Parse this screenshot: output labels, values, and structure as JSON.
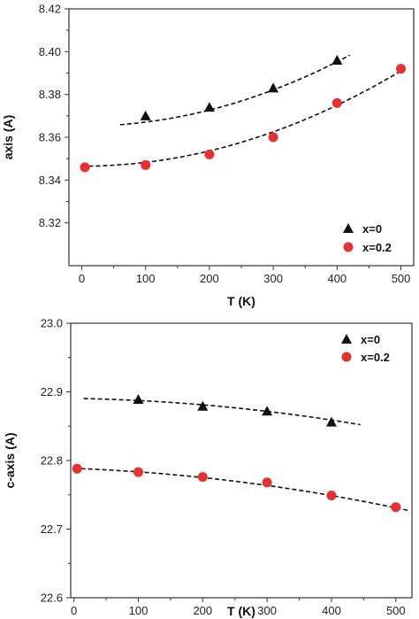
{
  "chart_data": [
    {
      "type": "scatter",
      "xlabel": "T (K)",
      "ylabel": "axis (A)",
      "xlim": [
        -20,
        520
      ],
      "ylim": [
        8.3,
        8.42
      ],
      "xticks": [
        0,
        100,
        200,
        300,
        400,
        500
      ],
      "xtick_labels": [
        "0",
        "100",
        "200",
        "300",
        "400",
        "500"
      ],
      "yticks": [
        8.32,
        8.34,
        8.36,
        8.38,
        8.4,
        8.42
      ],
      "ytick_labels": [
        "8.32",
        "8.34",
        "8.36",
        "8.38",
        "8.40",
        "8.42"
      ],
      "legend_position": "right",
      "series": [
        {
          "name": "x=0",
          "marker": "triangle",
          "color": "#111111",
          "x": [
            100,
            200,
            300,
            400
          ],
          "y": [
            8.37,
            8.374,
            8.383,
            8.396
          ],
          "fit": {
            "x": [
              60,
              420
            ],
            "a": 8.3652,
            "b": 0.0,
            "c": 1.88e-07
          }
        },
        {
          "name": "x=0.2",
          "marker": "circle",
          "color": "#e8312f",
          "x": [
            5,
            100,
            200,
            300,
            400,
            500
          ],
          "y": [
            8.346,
            8.347,
            8.352,
            8.36,
            8.376,
            8.392
          ],
          "fit": {
            "x": [
              0,
              505
            ],
            "a": 8.3465,
            "b": 0.0,
            "c": 1.78e-07
          }
        }
      ]
    },
    {
      "type": "scatter",
      "xlabel": "T (K)",
      "ylabel": "c-axis (A)",
      "xlim": [
        -5,
        525
      ],
      "ylim": [
        22.6,
        23.0
      ],
      "xticks": [
        0,
        100,
        200,
        300,
        400,
        500
      ],
      "xtick_labels": [
        "0",
        "100",
        "200",
        "300",
        "400",
        "500"
      ],
      "yticks": [
        22.6,
        22.7,
        22.8,
        22.9,
        23.0
      ],
      "ytick_labels": [
        "22.6",
        "22.7",
        "22.8",
        "22.9",
        "23.0"
      ],
      "legend_position": "top-right",
      "series": [
        {
          "name": "x=0",
          "marker": "triangle",
          "color": "#111111",
          "x": [
            100,
            200,
            300,
            400
          ],
          "y": [
            22.889,
            22.879,
            22.872,
            22.856
          ],
          "fit": {
            "x": [
              15,
              445
            ],
            "a": 22.8905,
            "b": -1.5e-05,
            "c": -1.6e-07
          }
        },
        {
          "name": "x=0.2",
          "marker": "circle",
          "color": "#e8312f",
          "x": [
            5,
            100,
            200,
            300,
            400,
            500
          ],
          "y": [
            22.788,
            22.783,
            22.776,
            22.768,
            22.749,
            22.732
          ],
          "fit": {
            "x": [
              0,
              520
            ],
            "a": 22.7885,
            "b": -3.5e-05,
            "c": -1.6e-07
          }
        }
      ]
    }
  ]
}
